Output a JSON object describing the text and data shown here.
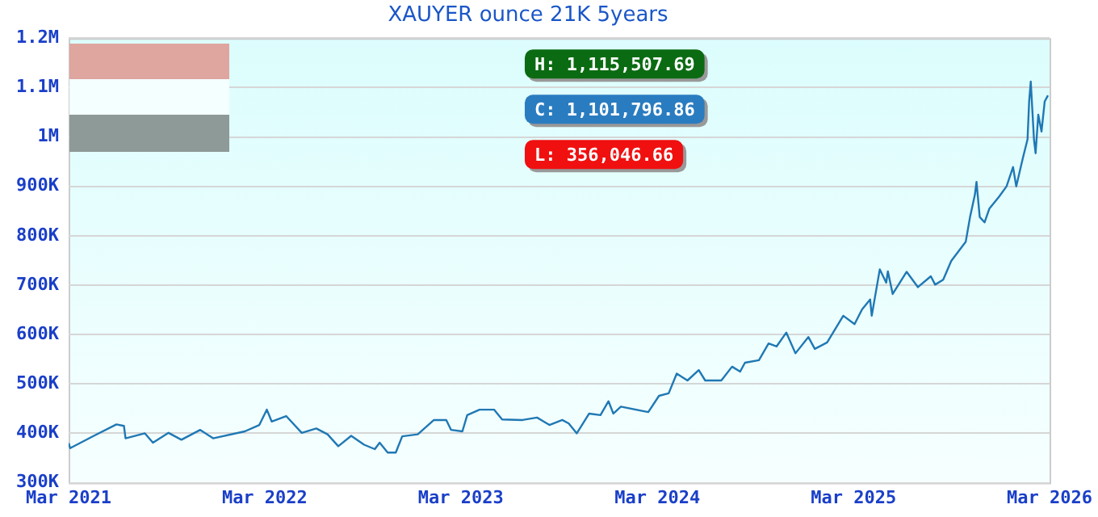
{
  "chart_data": {
    "type": "line",
    "title": "XAUYER ounce 21K 5years",
    "x": [
      "2021-03-01",
      "2021-03-04",
      "2021-04-17",
      "2021-05-29",
      "2021-06-12",
      "2021-06-15",
      "2021-07-21",
      "2021-08-05",
      "2021-09-03",
      "2021-09-27",
      "2021-11-01",
      "2021-11-25",
      "2022-01-23",
      "2022-02-19",
      "2022-03-05",
      "2022-03-14",
      "2022-04-10",
      "2022-05-09",
      "2022-06-05",
      "2022-06-26",
      "2022-07-16",
      "2022-08-09",
      "2022-09-02",
      "2022-09-22",
      "2022-10-01",
      "2022-10-16",
      "2022-10-31",
      "2022-11-12",
      "2022-12-11",
      "2023-01-10",
      "2023-02-02",
      "2023-02-11",
      "2023-03-04",
      "2023-03-13",
      "2023-04-05",
      "2023-05-02",
      "2023-05-17",
      "2023-06-24",
      "2023-07-21",
      "2023-07-30",
      "2023-08-13",
      "2023-09-06",
      "2023-09-18",
      "2023-10-03",
      "2023-10-26",
      "2023-11-16",
      "2023-12-01",
      "2023-12-10",
      "2023-12-24",
      "2024-02-13",
      "2024-03-04",
      "2024-03-22",
      "2024-04-06",
      "2024-04-26",
      "2024-05-17",
      "2024-05-29",
      "2024-06-28",
      "2024-07-18",
      "2024-08-02",
      "2024-08-11",
      "2024-09-06",
      "2024-09-24",
      "2024-10-09",
      "2024-10-27",
      "2024-11-13",
      "2024-12-07",
      "2024-12-19",
      "2025-01-11",
      "2025-02-10",
      "2025-03-03",
      "2025-03-17",
      "2025-04-01",
      "2025-04-04",
      "2025-04-19",
      "2025-05-01",
      "2025-05-04",
      "2025-05-13",
      "2025-06-08",
      "2025-06-29",
      "2025-07-23",
      "2025-07-31",
      "2025-08-15",
      "2025-08-30",
      "2025-09-26",
      "2025-10-04",
      "2025-10-13",
      "2025-10-16",
      "2025-10-22",
      "2025-10-31",
      "2025-11-09",
      "2025-11-27",
      "2025-12-11",
      "2025-12-23",
      "2025-12-29",
      "2026-01-10",
      "2026-01-19",
      "2026-01-22",
      "2026-01-25",
      "2026-01-31",
      "2026-02-03",
      "2026-02-08",
      "2026-02-14",
      "2026-02-20",
      "2026-02-26"
    ],
    "series": [
      {
        "color": "#1f78b4",
        "values": [
          380000,
          370000,
          395000,
          418000,
          415000,
          390000,
          400000,
          381000,
          401000,
          387000,
          407000,
          390000,
          404000,
          417000,
          448000,
          424000,
          435000,
          401000,
          410000,
          398000,
          374000,
          395000,
          377000,
          368000,
          381000,
          361000,
          361000,
          394000,
          398000,
          427000,
          427000,
          407000,
          404000,
          437000,
          448000,
          448000,
          428000,
          427000,
          432000,
          426000,
          417000,
          427000,
          420000,
          400000,
          440000,
          437000,
          465000,
          440000,
          454000,
          443000,
          476000,
          481000,
          521000,
          507000,
          528000,
          507000,
          507000,
          535000,
          525000,
          543000,
          548000,
          582000,
          576000,
          604000,
          562000,
          595000,
          571000,
          584000,
          638000,
          621000,
          651000,
          671000,
          638000,
          732000,
          705000,
          728000,
          682000,
          727000,
          696000,
          718000,
          701000,
          711000,
          749000,
          788000,
          838000,
          883000,
          909000,
          838000,
          827000,
          855000,
          879000,
          900000,
          939000,
          900000,
          956000,
          995000,
          1072000,
          1112000,
          995000,
          967000,
          1045000,
          1011000,
          1072000,
          1084000
        ]
      }
    ],
    "xlim": [
      "2021-03-01",
      "2026-03-01"
    ],
    "xticks": [
      {
        "value": "2021-03-01",
        "label": "Mar 2021"
      },
      {
        "value": "2022-03-01",
        "label": "Mar 2022"
      },
      {
        "value": "2023-03-01",
        "label": "Mar 2023"
      },
      {
        "value": "2024-03-01",
        "label": "Mar 2024"
      },
      {
        "value": "2025-03-01",
        "label": "Mar 2025"
      },
      {
        "value": "2026-03-01",
        "label": "Mar 2026"
      }
    ],
    "ylim": [
      300000,
      1200000
    ],
    "yticks": [
      {
        "value": 300000,
        "label": "300K"
      },
      {
        "value": 400000,
        "label": "400K"
      },
      {
        "value": 500000,
        "label": "500K"
      },
      {
        "value": 600000,
        "label": "600K"
      },
      {
        "value": 700000,
        "label": "700K"
      },
      {
        "value": 800000,
        "label": "800K"
      },
      {
        "value": 900000,
        "label": "900K"
      },
      {
        "value": 1000000,
        "label": "1M"
      },
      {
        "value": 1100000,
        "label": "1.1M"
      },
      {
        "value": 1200000,
        "label": "1.2M"
      }
    ],
    "annotations": [
      "H: 1,115,507.69",
      "C: 1,101,796.86",
      "L: 356,046.66"
    ],
    "grid": "y",
    "legend": false,
    "marker": "none",
    "line_style": "solid"
  }
}
